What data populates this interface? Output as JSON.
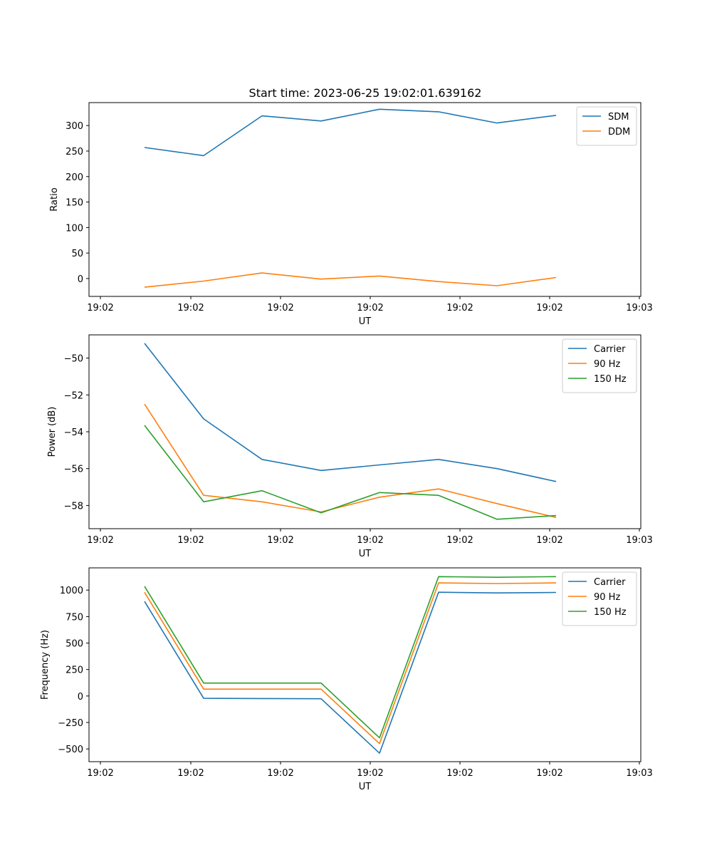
{
  "title": "Start time: 2023-06-25 19:02:01.639162",
  "chart_data": [
    {
      "type": "line",
      "xlabel": "UT",
      "ylabel": "Ratio",
      "xticks": [
        "19:02",
        "19:02",
        "19:02",
        "19:02",
        "19:02",
        "19:02",
        "19:03"
      ],
      "ylim": [
        -35,
        345
      ],
      "yticks": [
        0,
        50,
        100,
        150,
        200,
        250,
        300
      ],
      "legend_position": "upper right",
      "grid": false,
      "series": [
        {
          "name": "SDM",
          "color": "#1f77b4",
          "values": [
            257,
            241,
            319,
            309,
            332,
            327,
            305,
            320
          ]
        },
        {
          "name": "DDM",
          "color": "#ff7f0e",
          "values": [
            -17,
            -5,
            11,
            -1,
            5,
            -6,
            -14,
            2
          ]
        }
      ]
    },
    {
      "type": "line",
      "xlabel": "UT",
      "ylabel": "Power (dB)",
      "xticks": [
        "19:02",
        "19:02",
        "19:02",
        "19:02",
        "19:02",
        "19:02",
        "19:03"
      ],
      "ylim": [
        -59.26,
        -48.74
      ],
      "yticks": [
        -58,
        -56,
        -54,
        -52,
        -50
      ],
      "legend_position": "upper right",
      "grid": false,
      "series": [
        {
          "name": "Carrier",
          "color": "#1f77b4",
          "values": [
            -49.2,
            -53.3,
            -55.5,
            -56.1,
            -55.8,
            -55.5,
            -56.0,
            -56.7
          ]
        },
        {
          "name": "90 Hz",
          "color": "#ff7f0e",
          "values": [
            -52.5,
            -57.45,
            -57.8,
            -58.35,
            -57.55,
            -57.1,
            -57.9,
            -58.65
          ]
        },
        {
          "name": "150 Hz",
          "color": "#2ca02c",
          "values": [
            -53.65,
            -57.8,
            -57.2,
            -58.4,
            -57.3,
            -57.45,
            -58.75,
            -58.55
          ]
        }
      ]
    },
    {
      "type": "line",
      "xlabel": "UT",
      "ylabel": "Frequency (Hz)",
      "xticks": [
        "19:02",
        "19:02",
        "19:02",
        "19:02",
        "19:02",
        "19:02",
        "19:03"
      ],
      "ylim": [
        -620,
        1210
      ],
      "yticks": [
        -500,
        -250,
        0,
        250,
        500,
        750,
        1000
      ],
      "legend_position": "upper right",
      "grid": false,
      "series": [
        {
          "name": "Carrier",
          "color": "#1f77b4",
          "values": [
            893,
            -22,
            -24,
            -26,
            -540,
            980,
            973,
            978
          ]
        },
        {
          "name": "90 Hz",
          "color": "#ff7f0e",
          "values": [
            979,
            65,
            65,
            65,
            -450,
            1068,
            1062,
            1068
          ]
        },
        {
          "name": "150 Hz",
          "color": "#2ca02c",
          "values": [
            1036,
            122,
            122,
            122,
            -395,
            1127,
            1121,
            1127
          ]
        }
      ]
    }
  ]
}
